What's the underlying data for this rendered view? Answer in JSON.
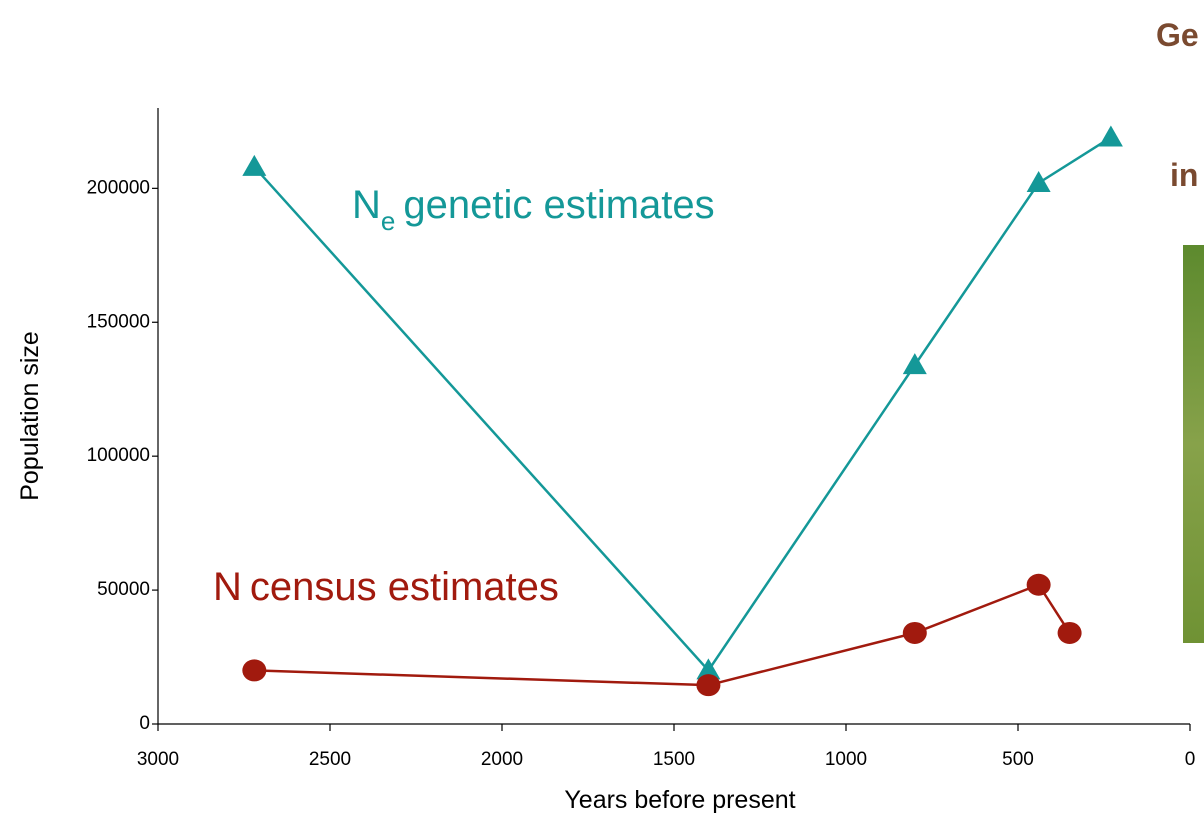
{
  "chart_data": {
    "type": "line",
    "xlabel": "Years before present",
    "ylabel": "Population size",
    "xlim": [
      3000,
      0
    ],
    "xticks": [
      3000,
      2500,
      2000,
      1500,
      1000,
      500,
      0
    ],
    "ylim": [
      0,
      230000
    ],
    "yticks": [
      0,
      50000,
      100000,
      150000,
      200000
    ],
    "series": [
      {
        "name": "genetic estimates",
        "prefix": "N",
        "subscript": "e",
        "color": "#149898",
        "marker": "triangle",
        "x": [
          2720,
          1400,
          800,
          440,
          230
        ],
        "values": [
          208000,
          20000,
          134000,
          202000,
          219000
        ]
      },
      {
        "name": "census estimates",
        "prefix": "N",
        "color": "#a11a0e",
        "marker": "circle",
        "x": [
          2720,
          1400,
          800,
          440,
          350
        ],
        "values": [
          20000,
          14500,
          34000,
          52000,
          34000
        ]
      }
    ],
    "cropped_texts": [
      "Ge",
      "in"
    ]
  }
}
